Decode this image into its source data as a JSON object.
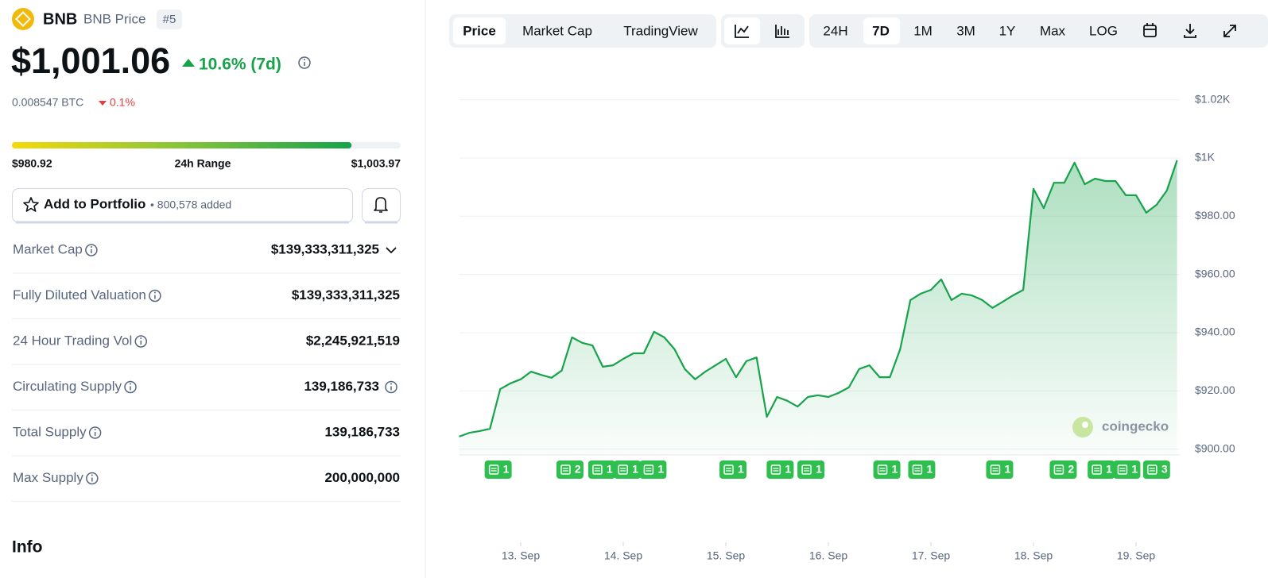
{
  "coin": {
    "symbol": "BNB",
    "name": "BNB Price",
    "rank": "#5",
    "price": "$1,001.06",
    "change": "10.6% (7d)",
    "btc_price": "0.008547 BTC",
    "btc_change": "0.1%"
  },
  "range": {
    "low": "$980.92",
    "label": "24h Range",
    "high": "$1,003.97"
  },
  "portfolio": {
    "button": "Add to Portfolio",
    "added": "• 800,578 added"
  },
  "stats": [
    {
      "label": "Market Cap",
      "value": "$139,333,311,325"
    },
    {
      "label": "Fully Diluted Valuation",
      "value": "$139,333,311,325"
    },
    {
      "label": "24 Hour Trading Vol",
      "value": "$2,245,921,519"
    },
    {
      "label": "Circulating Supply",
      "value": "139,186,733"
    },
    {
      "label": "Total Supply",
      "value": "139,186,733"
    },
    {
      "label": "Max Supply",
      "value": "200,000,000"
    }
  ],
  "info_heading": "Info",
  "tabs": [
    "Price",
    "Market Cap",
    "TradingView"
  ],
  "ranges": [
    "24H",
    "7D",
    "1M",
    "3M",
    "1Y",
    "Max",
    "LOG"
  ],
  "chart_data": {
    "type": "line",
    "color": "#16a34a",
    "watermark": "coingecko",
    "x": [
      12.4,
      12.5,
      12.6,
      12.7,
      12.8,
      12.9,
      13,
      13.1,
      13.2,
      13.3,
      13.4,
      13.5,
      13.6,
      13.7,
      13.8,
      13.9,
      14,
      14.1,
      14.2,
      14.3,
      14.4,
      14.5,
      14.6,
      14.7,
      14.8,
      14.9,
      15,
      15.1,
      15.2,
      15.3,
      15.4,
      15.5,
      15.6,
      15.7,
      15.8,
      15.9,
      16,
      16.1,
      16.2,
      16.3,
      16.4,
      16.5,
      16.6,
      16.7,
      16.8,
      16.9,
      17,
      17.1,
      17.2,
      17.3,
      17.4,
      17.5,
      17.6,
      17.7,
      17.8,
      17.9,
      18,
      18.1,
      18.2,
      18.3,
      18.4,
      18.5,
      18.6,
      18.7,
      18.8,
      18.9,
      19,
      19.1,
      19.2,
      19.3,
      19.4
    ],
    "values": [
      904.3,
      905.6,
      906.2,
      907,
      920.6,
      922.6,
      924,
      926.6,
      925.5,
      924.5,
      927,
      938.4,
      936.5,
      935.6,
      928.3,
      928.8,
      931,
      932.9,
      932.9,
      940.3,
      938.4,
      934.3,
      927.5,
      924,
      926.6,
      928.8,
      931,
      924.7,
      930.2,
      931.5,
      911.1,
      917.9,
      916.6,
      914.6,
      917.9,
      918.5,
      917.9,
      919.3,
      921.2,
      927.5,
      928.8,
      924.7,
      924.7,
      934.3,
      951.2,
      953.4,
      954.7,
      958.3,
      951.2,
      953.4,
      952.8,
      951.2,
      948.5,
      950.6,
      952.8,
      954.7,
      989.4,
      982.8,
      991.5,
      991.5,
      998.4,
      991,
      992.9,
      992.1,
      992.1,
      987.2,
      987.2,
      981.2,
      983.9,
      988.8,
      999.2
    ],
    "xlim": [
      12.4,
      19.43
    ],
    "ylim": [
      898,
      1024
    ],
    "xticks": [
      {
        "value": 13,
        "label": "13. Sep"
      },
      {
        "value": 14,
        "label": "14. Sep"
      },
      {
        "value": 15,
        "label": "15. Sep"
      },
      {
        "value": 16,
        "label": "16. Sep"
      },
      {
        "value": 17,
        "label": "17. Sep"
      },
      {
        "value": 18,
        "label": "18. Sep"
      },
      {
        "value": 19,
        "label": "19. Sep"
      }
    ],
    "yticks": [
      {
        "value": 900,
        "label": "$900.00"
      },
      {
        "value": 920,
        "label": "$920.00"
      },
      {
        "value": 940,
        "label": "$940.00"
      },
      {
        "value": 960,
        "label": "$960.00"
      },
      {
        "value": 980,
        "label": "$980.00"
      },
      {
        "value": 1000,
        "label": "$1K"
      },
      {
        "value": 1020,
        "label": "$1.02K"
      }
    ],
    "grid": true,
    "news": [
      {
        "x": 12.78,
        "count": 1
      },
      {
        "x": 13.48,
        "count": 2
      },
      {
        "x": 13.79,
        "count": 1
      },
      {
        "x": 14.04,
        "count": 1
      },
      {
        "x": 14.29,
        "count": 1
      },
      {
        "x": 15.07,
        "count": 1
      },
      {
        "x": 15.53,
        "count": 1
      },
      {
        "x": 15.83,
        "count": 1
      },
      {
        "x": 16.57,
        "count": 1
      },
      {
        "x": 16.91,
        "count": 1
      },
      {
        "x": 17.67,
        "count": 1
      },
      {
        "x": 18.29,
        "count": 2
      },
      {
        "x": 18.66,
        "count": 1
      },
      {
        "x": 18.91,
        "count": 1
      },
      {
        "x": 19.2,
        "count": 3
      }
    ]
  }
}
